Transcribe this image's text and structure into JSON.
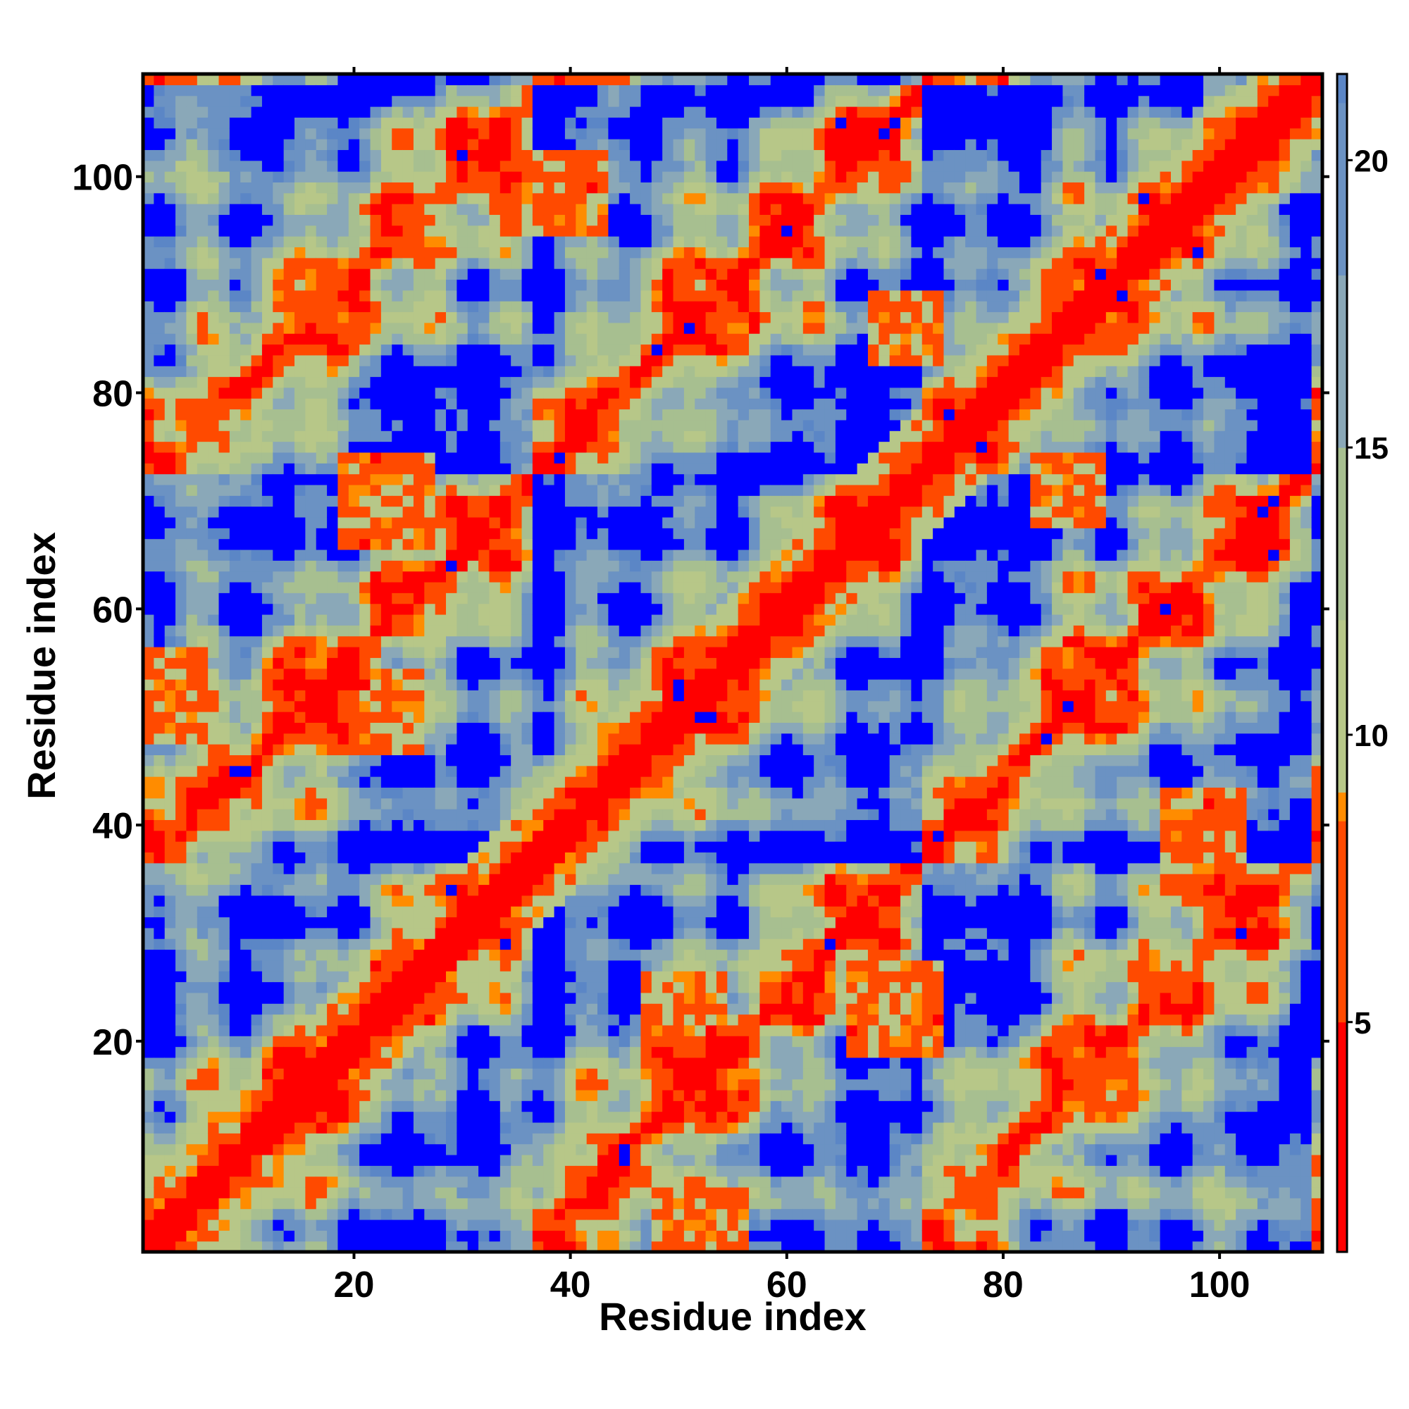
{
  "chart_data": {
    "type": "heatmap",
    "title": "",
    "xlabel": "Residue index",
    "ylabel": "Residue index",
    "x_ticks": [
      20,
      40,
      60,
      80,
      100
    ],
    "y_ticks": [
      20,
      40,
      60,
      80,
      100
    ],
    "colorbar_ticks": [
      5,
      10,
      15,
      20
    ],
    "xlim": [
      1,
      109
    ],
    "ylim": [
      1,
      109
    ],
    "n_residues": 109,
    "colorbar_range": [
      1,
      21.5
    ],
    "value_unit": "",
    "grid": false,
    "legend": "colorbar-right",
    "colors": {
      "contact": "#ff0000",
      "near": "#ff8c00",
      "mid": "#a8c08a",
      "far_light": "#7e9fbf",
      "far": "#5b86c6",
      "max": "#0000ff"
    },
    "color_stops": [
      {
        "value": 1,
        "color": "#ff0000"
      },
      {
        "value": 5,
        "color": "#ff4a00"
      },
      {
        "value": 8.5,
        "color": "#ff8c00"
      },
      {
        "value": 9,
        "color": "#b7c788"
      },
      {
        "value": 12,
        "color": "#a7bf90"
      },
      {
        "value": 15,
        "color": "#8aa8b8"
      },
      {
        "value": 18,
        "color": "#6b92c3"
      },
      {
        "value": 21,
        "color": "#5b86c6"
      },
      {
        "value": 21.5,
        "color": "#0000ff"
      }
    ],
    "structure": {
      "diagonal_band_half_width": 2,
      "secondary_contacts": [
        {
          "residues_i": [
            1,
            6
          ],
          "residues_j": [
            48,
            56
          ]
        },
        {
          "residues_i": [
            18,
            26
          ],
          "residues_j": [
            47,
            54
          ]
        },
        {
          "residues_i": [
            19,
            27
          ],
          "residues_j": [
            66,
            74
          ]
        },
        {
          "residues_i": [
            47,
            55
          ],
          "residues_j": [
            19,
            27
          ]
        },
        {
          "residues_i": [
            66,
            74
          ],
          "residues_j": [
            17,
            26
          ]
        },
        {
          "residues_i": [
            68,
            74
          ],
          "residues_j": [
            83,
            89
          ]
        },
        {
          "residues_i": [
            83,
            90
          ],
          "residues_j": [
            67,
            74
          ]
        },
        {
          "residues_i": [
            50,
            54
          ],
          "residues_j": [
            1,
            5
          ]
        },
        {
          "residues_i": [
            33,
            43
          ],
          "residues_j": [
            95,
            102
          ]
        },
        {
          "residues_i": [
            92,
            100
          ],
          "residues_j": [
            33,
            40
          ]
        }
      ]
    }
  }
}
